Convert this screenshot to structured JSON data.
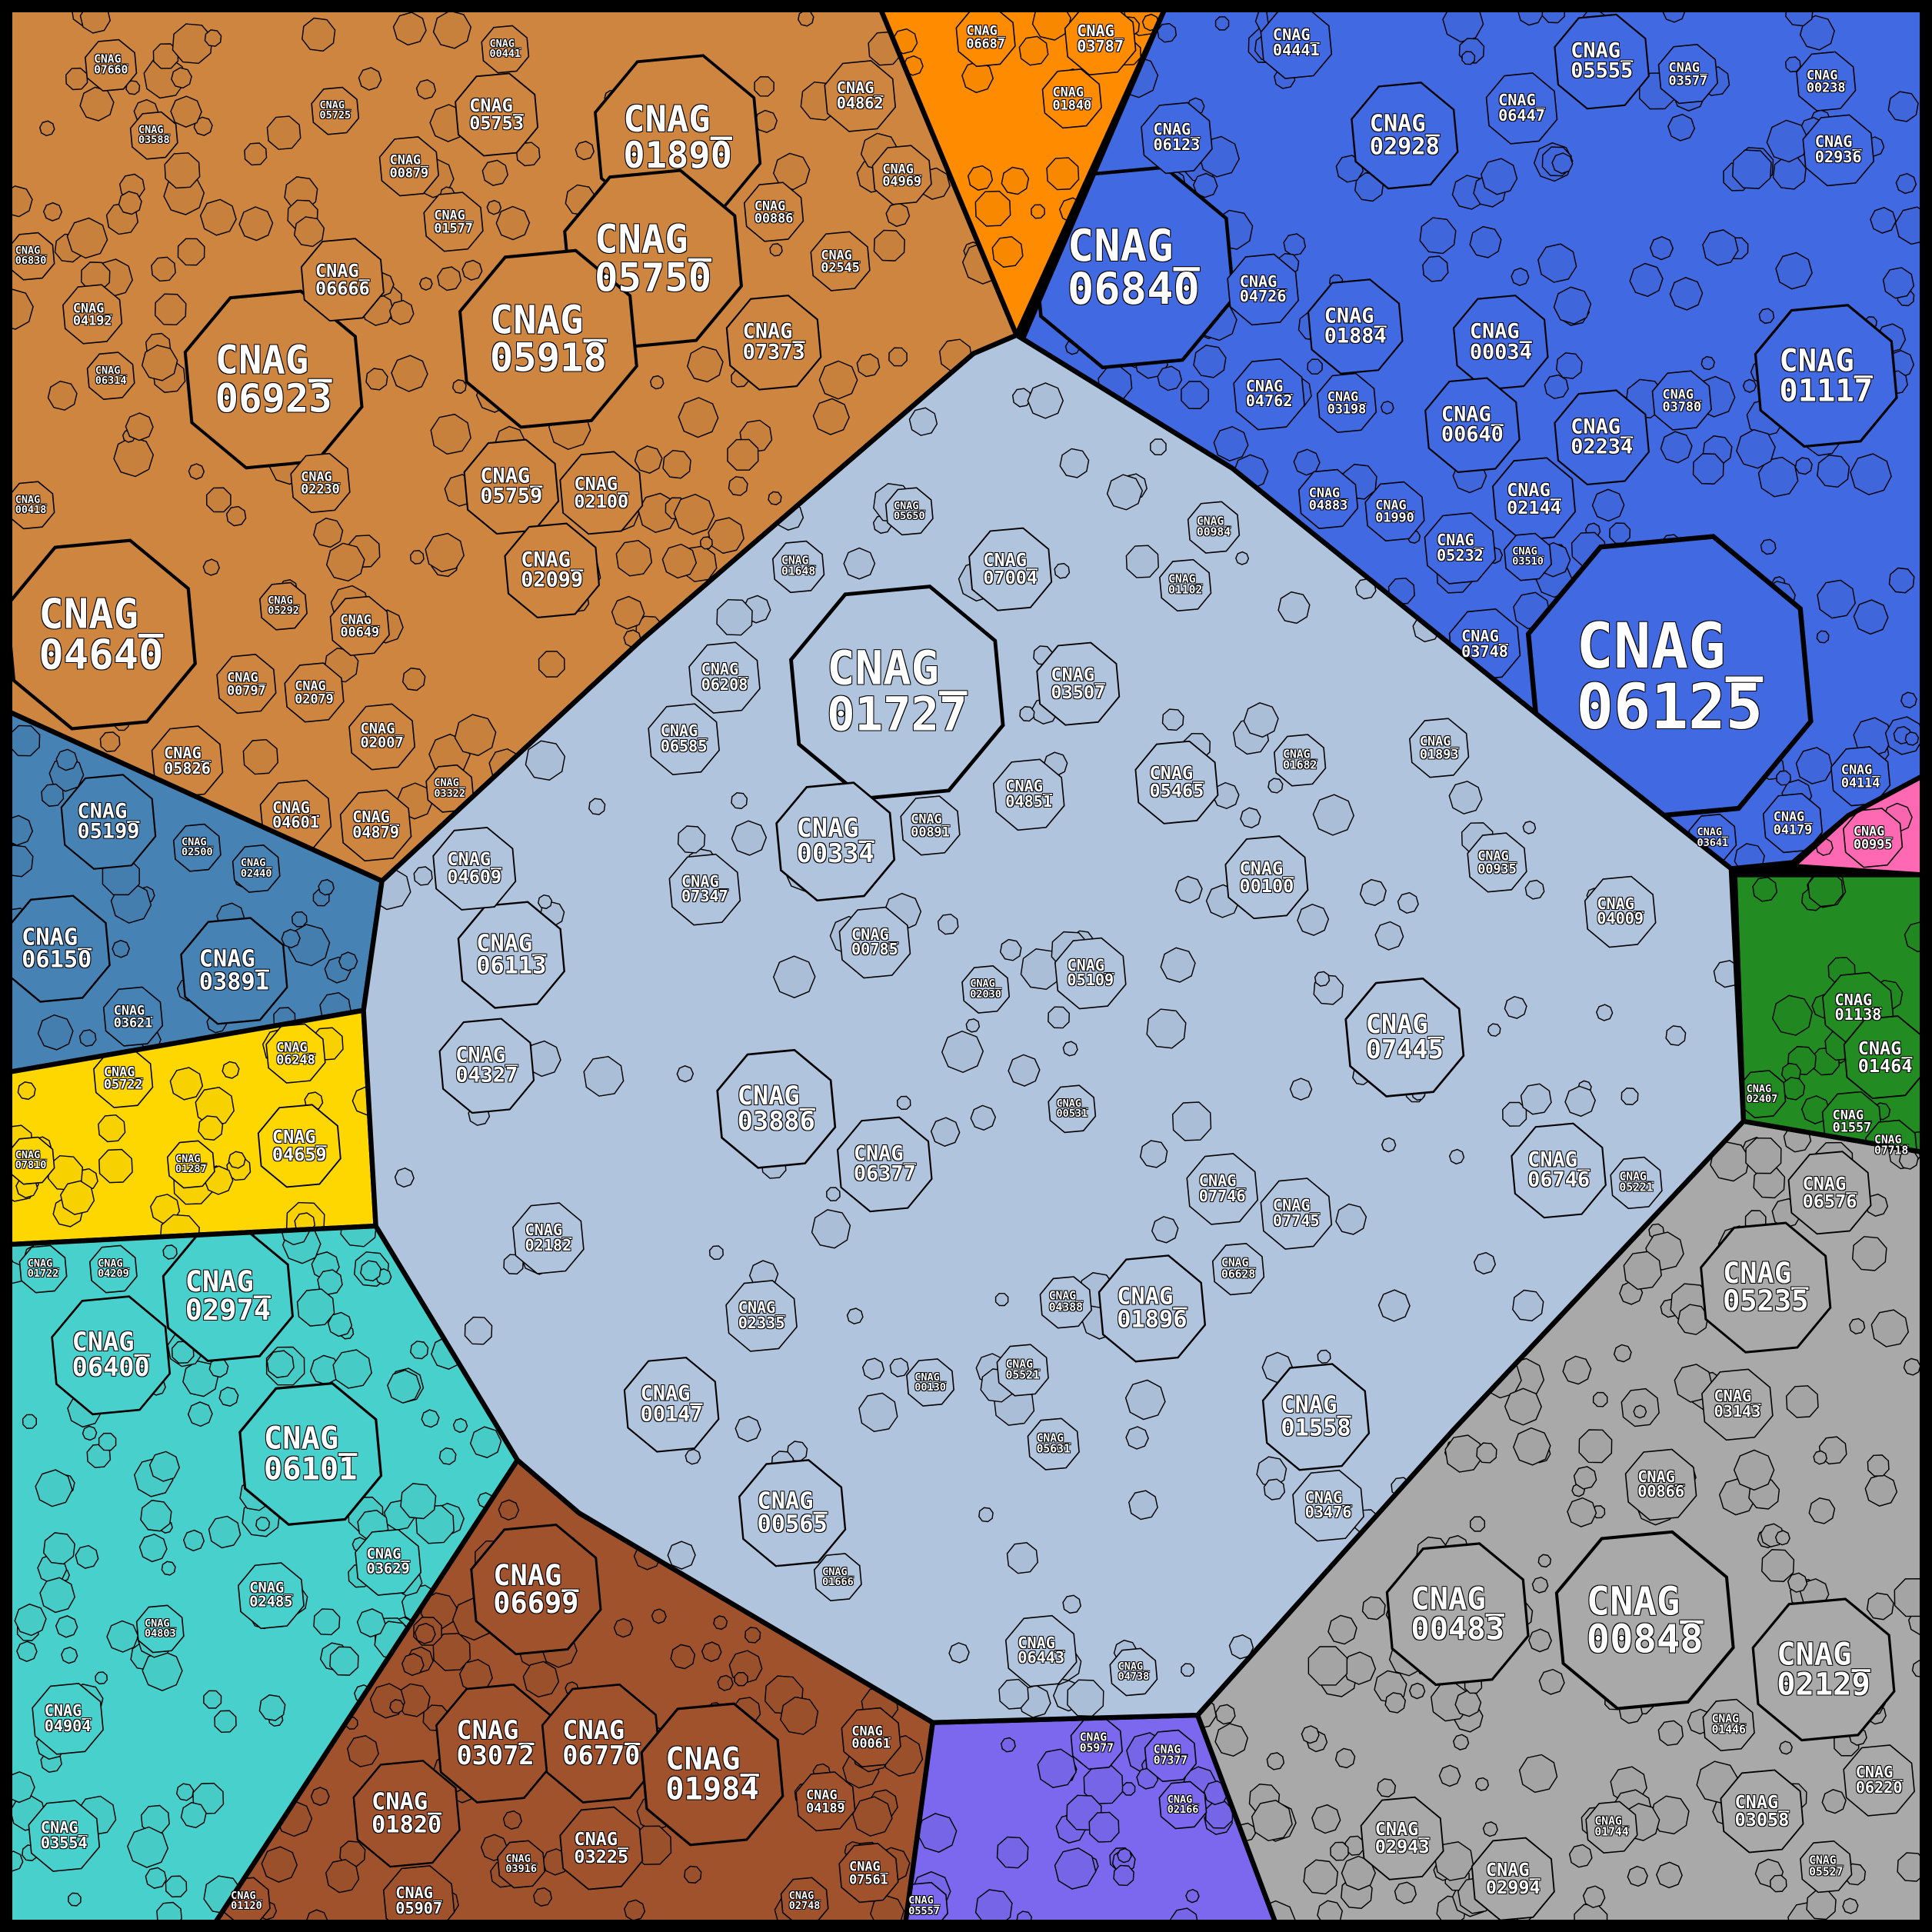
{
  "chart_data": {
    "type": "treemap",
    "layout": "voronoi",
    "border_color": "#000000",
    "label_color": "#ffffff",
    "groups": [
      {
        "id": "tan",
        "color": "#CD853F",
        "cells": [
          {
            "label": "CNAG_01890",
            "size": 196
          },
          {
            "label": "CNAG_05750",
            "size": 225
          },
          {
            "label": "CNAG_05918",
            "size": 225
          },
          {
            "label": "CNAG_06923",
            "size": 225
          },
          {
            "label": "CNAG_04640",
            "size": 256
          },
          {
            "label": "CNAG_06666",
            "size": 49
          },
          {
            "label": "CNAG_07373",
            "size": 64
          },
          {
            "label": "CNAG_05759",
            "size": 64
          },
          {
            "label": "CNAG_02100",
            "size": 49
          },
          {
            "label": "CNAG_02099",
            "size": 64
          },
          {
            "label": "CNAG_05753",
            "size": 49
          },
          {
            "label": "CNAG_04862",
            "size": 36
          },
          {
            "label": "CNAG_00879",
            "size": 25
          },
          {
            "label": "CNAG_01577",
            "size": 25
          },
          {
            "label": "CNAG_02230",
            "size": 25
          },
          {
            "label": "CNAG_04192",
            "size": 25
          },
          {
            "label": "CNAG_05826",
            "size": 36
          },
          {
            "label": "CNAG_04601",
            "size": 36
          },
          {
            "label": "CNAG_04879",
            "size": 36
          },
          {
            "label": "CNAG_02007",
            "size": 31
          },
          {
            "label": "CNAG_00797",
            "size": 25
          },
          {
            "label": "CNAG_02079",
            "size": 25
          },
          {
            "label": "CNAG_00649",
            "size": 25
          },
          {
            "label": "CNAG_05292",
            "size": 16
          },
          {
            "label": "CNAG_00886",
            "size": 25
          },
          {
            "label": "CNAG_02545",
            "size": 25
          },
          {
            "label": "CNAG_04969",
            "size": 25
          },
          {
            "label": "CNAG_07660",
            "size": 19
          },
          {
            "label": "CNAG_06830",
            "size": 16
          },
          {
            "label": "CNAG_06314",
            "size": 16
          },
          {
            "label": "CNAG_00418",
            "size": 16
          },
          {
            "label": "CNAG_03322",
            "size": 16
          },
          {
            "label": "CNAG_03588",
            "size": 16
          },
          {
            "label": "CNAG_05725",
            "size": 16
          },
          {
            "label": "CNAG_00441",
            "size": 16
          }
        ]
      },
      {
        "id": "orange",
        "color": "#FF8C00",
        "cells": [
          {
            "label": "CNAG_06687",
            "size": 25
          },
          {
            "label": "CNAG_03787",
            "size": 36
          },
          {
            "label": "CNAG_01840",
            "size": 25
          }
        ]
      },
      {
        "id": "royalblue",
        "color": "#4169E1",
        "cells": [
          {
            "label": "CNAG_06840",
            "size": 289
          },
          {
            "label": "CNAG_06125",
            "size": 576
          },
          {
            "label": "CNAG_01117",
            "size": 144
          },
          {
            "label": "CNAG_04441",
            "size": 36
          },
          {
            "label": "CNAG_05555",
            "size": 64
          },
          {
            "label": "CNAG_02928",
            "size": 81
          },
          {
            "label": "CNAG_06447",
            "size": 36
          },
          {
            "label": "CNAG_06123",
            "size": 36
          },
          {
            "label": "CNAG_04726",
            "size": 36
          },
          {
            "label": "CNAG_01884",
            "size": 64
          },
          {
            "label": "CNAG_00034",
            "size": 64
          },
          {
            "label": "CNAG_00640",
            "size": 64
          },
          {
            "label": "CNAG_02234",
            "size": 64
          },
          {
            "label": "CNAG_02144",
            "size": 49
          },
          {
            "label": "CNAG_05232",
            "size": 36
          },
          {
            "label": "CNAG_03748",
            "size": 36
          },
          {
            "label": "CNAG_04762",
            "size": 36
          },
          {
            "label": "CNAG_02936",
            "size": 36
          },
          {
            "label": "CNAG_03577",
            "size": 25
          },
          {
            "label": "CNAG_00238",
            "size": 25
          },
          {
            "label": "CNAG_03198",
            "size": 25
          },
          {
            "label": "CNAG_04883",
            "size": 25
          },
          {
            "label": "CNAG_01990",
            "size": 25
          },
          {
            "label": "CNAG_03780",
            "size": 25
          },
          {
            "label": "CNAG_04114",
            "size": 25
          },
          {
            "label": "CNAG_03510",
            "size": 16
          },
          {
            "label": "CNAG_04179",
            "size": 25
          },
          {
            "label": "CNAG_03641",
            "size": 16
          }
        ]
      },
      {
        "id": "steelblue",
        "color": "#4682B4",
        "cells": [
          {
            "label": "CNAG_05199",
            "size": 64
          },
          {
            "label": "CNAG_06150",
            "size": 81
          },
          {
            "label": "CNAG_03891",
            "size": 81
          },
          {
            "label": "CNAG_03621",
            "size": 25
          },
          {
            "label": "CNAG_02440",
            "size": 16
          },
          {
            "label": "CNAG_02500",
            "size": 16
          }
        ]
      },
      {
        "id": "gold",
        "color": "#FFD700",
        "cells": [
          {
            "label": "CNAG_06248",
            "size": 25
          },
          {
            "label": "CNAG_04659",
            "size": 49
          },
          {
            "label": "CNAG_05722",
            "size": 25
          },
          {
            "label": "CNAG_07810",
            "size": 16
          },
          {
            "label": "CNAG_01287",
            "size": 16
          }
        ]
      },
      {
        "id": "turquoise",
        "color": "#48D1CC",
        "cells": [
          {
            "label": "CNAG_02974",
            "size": 121
          },
          {
            "label": "CNAG_06400",
            "size": 100
          },
          {
            "label": "CNAG_06101",
            "size": 144
          },
          {
            "label": "CNAG_03629",
            "size": 31
          },
          {
            "label": "CNAG_04904",
            "size": 36
          },
          {
            "label": "CNAG_03554",
            "size": 36
          },
          {
            "label": "CNAG_02485",
            "size": 31
          },
          {
            "label": "CNAG_01722",
            "size": 16
          },
          {
            "label": "CNAG_04209",
            "size": 16
          },
          {
            "label": "CNAG_04803",
            "size": 16
          }
        ]
      },
      {
        "id": "sienna",
        "color": "#A0522D",
        "cells": [
          {
            "label": "CNAG_06699",
            "size": 121
          },
          {
            "label": "CNAG_03072",
            "size": 100
          },
          {
            "label": "CNAG_06770",
            "size": 100
          },
          {
            "label": "CNAG_01984",
            "size": 144
          },
          {
            "label": "CNAG_01820",
            "size": 81
          },
          {
            "label": "CNAG_03225",
            "size": 49
          },
          {
            "label": "CNAG_05907",
            "size": 36
          },
          {
            "label": "CNAG_00061",
            "size": 25
          },
          {
            "label": "CNAG_04189",
            "size": 25
          },
          {
            "label": "CNAG_07561",
            "size": 25
          },
          {
            "label": "CNAG_02748",
            "size": 16
          },
          {
            "label": "CNAG_01120",
            "size": 16
          },
          {
            "label": "CNAG_03916",
            "size": 16
          }
        ]
      },
      {
        "id": "slateblue",
        "color": "#7B68EE",
        "cells": [
          {
            "label": "CNAG_05977",
            "size": 19
          },
          {
            "label": "CNAG_07377",
            "size": 19
          },
          {
            "label": "CNAG_02166",
            "size": 16
          },
          {
            "label": "CNAG_05557",
            "size": 16
          }
        ]
      },
      {
        "id": "gray",
        "color": "#A9A9A9",
        "cells": [
          {
            "label": "CNAG_00483",
            "size": 144
          },
          {
            "label": "CNAG_00848",
            "size": 225
          },
          {
            "label": "CNAG_02129",
            "size": 144
          },
          {
            "label": "CNAG_05235",
            "size": 121
          },
          {
            "label": "CNAG_06576",
            "size": 49
          },
          {
            "label": "CNAG_02943",
            "size": 49
          },
          {
            "label": "CNAG_02994",
            "size": 49
          },
          {
            "label": "CNAG_00866",
            "size": 36
          },
          {
            "label": "CNAG_03143",
            "size": 36
          },
          {
            "label": "CNAG_03058",
            "size": 49
          },
          {
            "label": "CNAG_06220",
            "size": 36
          },
          {
            "label": "CNAG_01744",
            "size": 19
          },
          {
            "label": "CNAG_05527",
            "size": 19
          },
          {
            "label": "CNAG_01446",
            "size": 19
          }
        ]
      },
      {
        "id": "green",
        "color": "#228B22",
        "cells": [
          {
            "label": "CNAG_01138",
            "size": 36
          },
          {
            "label": "CNAG_01464",
            "size": 49
          },
          {
            "label": "CNAG_01557",
            "size": 25
          },
          {
            "label": "CNAG_07718",
            "size": 19
          },
          {
            "label": "CNAG_02407",
            "size": 16
          }
        ]
      },
      {
        "id": "pink",
        "color": "#FF69B4",
        "cells": [
          {
            "label": "CNAG_00995",
            "size": 25
          }
        ]
      },
      {
        "id": "lightsteelblue",
        "color": "#B0C4DE",
        "cells": [
          {
            "label": "CNAG_01727",
            "size": 324
          },
          {
            "label": "CNAG_00334",
            "size": 100
          },
          {
            "label": "CNAG_03886",
            "size": 100
          },
          {
            "label": "CNAG_06377",
            "size": 64
          },
          {
            "label": "CNAG_06113",
            "size": 81
          },
          {
            "label": "CNAG_04327",
            "size": 64
          },
          {
            "label": "CNAG_04609",
            "size": 49
          },
          {
            "label": "CNAG_07445",
            "size": 100
          },
          {
            "label": "CNAG_01896",
            "size": 81
          },
          {
            "label": "CNAG_01558",
            "size": 81
          },
          {
            "label": "CNAG_00100",
            "size": 49
          },
          {
            "label": "CNAG_05465",
            "size": 49
          },
          {
            "label": "CNAG_06746",
            "size": 64
          },
          {
            "label": "CNAG_00565",
            "size": 81
          },
          {
            "label": "CNAG_00147",
            "size": 64
          },
          {
            "label": "CNAG_06443",
            "size": 36
          },
          {
            "label": "CNAG_07004",
            "size": 49
          },
          {
            "label": "CNAG_03507",
            "size": 49
          },
          {
            "label": "CNAG_04851",
            "size": 36
          },
          {
            "label": "CNAG_06585",
            "size": 36
          },
          {
            "label": "CNAG_06208",
            "size": 36
          },
          {
            "label": "CNAG_07347",
            "size": 36
          },
          {
            "label": "CNAG_00785",
            "size": 36
          },
          {
            "label": "CNAG_05109",
            "size": 36
          },
          {
            "label": "CNAG_04009",
            "size": 36
          },
          {
            "label": "CNAG_07745",
            "size": 36
          },
          {
            "label": "CNAG_07746",
            "size": 36
          },
          {
            "label": "CNAG_03476",
            "size": 36
          },
          {
            "label": "CNAG_02182",
            "size": 36
          },
          {
            "label": "CNAG_02335",
            "size": 36
          },
          {
            "label": "CNAG_00891",
            "size": 25
          },
          {
            "label": "CNAG_01893",
            "size": 25
          },
          {
            "label": "CNAG_01682",
            "size": 19
          },
          {
            "label": "CNAG_00935",
            "size": 25
          },
          {
            "label": "CNAG_05221",
            "size": 19
          },
          {
            "label": "CNAG_06628",
            "size": 19
          },
          {
            "label": "CNAG_04388",
            "size": 19
          },
          {
            "label": "CNAG_05631",
            "size": 19
          },
          {
            "label": "CNAG_05521",
            "size": 19
          },
          {
            "label": "CNAG_01648",
            "size": 19
          },
          {
            "label": "CNAG_00984",
            "size": 19
          },
          {
            "label": "CNAG_01102",
            "size": 19
          },
          {
            "label": "CNAG_05650",
            "size": 16
          },
          {
            "label": "CNAG_02030",
            "size": 16
          },
          {
            "label": "CNAG_00531",
            "size": 16
          },
          {
            "label": "CNAG_04738",
            "size": 16
          },
          {
            "label": "CNAG_01666",
            "size": 16
          },
          {
            "label": "CNAG_00130",
            "size": 16
          }
        ]
      }
    ]
  }
}
